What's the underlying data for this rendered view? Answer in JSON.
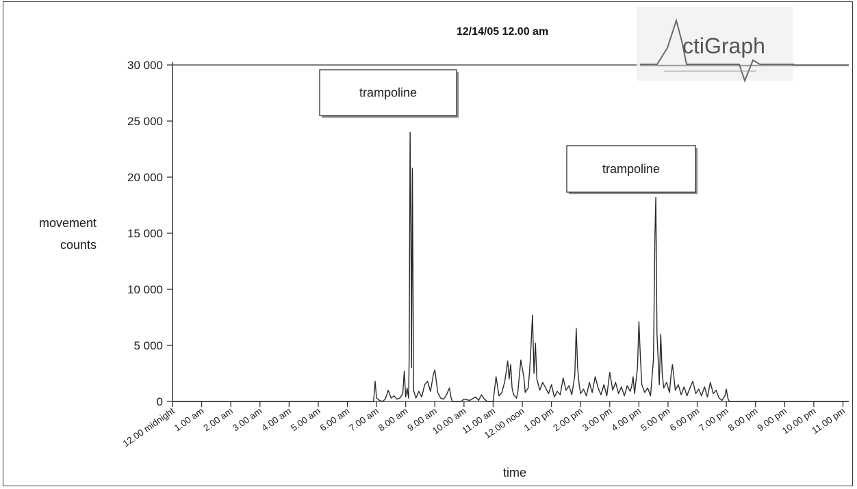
{
  "chart_data": {
    "type": "line",
    "title": "12/14/05 12.00 am",
    "logo_text": "ActiGraph",
    "xlabel": "time",
    "ylabel": [
      "movement",
      "counts"
    ],
    "ylim": [
      0,
      30000
    ],
    "y_ticks": [
      0,
      5000,
      10000,
      15000,
      20000,
      25000,
      30000
    ],
    "y_tick_labels": [
      "0",
      "5 000",
      "10 000",
      "15 000",
      "20 000",
      "25 000",
      "30 000"
    ],
    "x_range_hours": [
      0,
      23.2
    ],
    "x_ticks": [
      0,
      1,
      2,
      3,
      4,
      5,
      6,
      7,
      8,
      9,
      10,
      11,
      12,
      13,
      14,
      15,
      16,
      17,
      18,
      19,
      20,
      21,
      22,
      23
    ],
    "x_tick_labels": [
      "12.00 midnight",
      "1.00 am",
      "2.00 am",
      "3.00 am",
      "4.00 am",
      "5.00 am",
      "6.00 am",
      "7.00 am",
      "8.00 am",
      "9.00 am",
      "10.00 am",
      "11.00 am",
      "12.00 noon",
      "1.00 pm",
      "2.00 pm",
      "3.00 pm",
      "4.00 pm",
      "5.00 pm",
      "6.00 pm",
      "7.00 pm",
      "8.00 pm",
      "9.00 pm",
      "10.00 pm",
      "11.00 pm"
    ],
    "grid": false,
    "legend": "none",
    "annotations": [
      {
        "text": "trampoline",
        "hour": 8.2,
        "value": 24000
      },
      {
        "text": "trampoline",
        "hour": 16.55,
        "value": 18200
      }
    ],
    "series": [
      {
        "color": "#2a2a2a",
        "points": [
          [
            0,
            0
          ],
          [
            6.9,
            0
          ],
          [
            6.95,
            1800
          ],
          [
            7.0,
            300
          ],
          [
            7.1,
            100
          ],
          [
            7.2,
            0
          ],
          [
            7.3,
            200
          ],
          [
            7.4,
            1000
          ],
          [
            7.5,
            300
          ],
          [
            7.6,
            500
          ],
          [
            7.7,
            200
          ],
          [
            7.8,
            300
          ],
          [
            7.9,
            700
          ],
          [
            7.95,
            2700
          ],
          [
            8.0,
            400
          ],
          [
            8.05,
            1200
          ],
          [
            8.1,
            300
          ],
          [
            8.12,
            4000
          ],
          [
            8.15,
            24000
          ],
          [
            8.18,
            15000
          ],
          [
            8.2,
            3000
          ],
          [
            8.23,
            20800
          ],
          [
            8.27,
            1000
          ],
          [
            8.35,
            300
          ],
          [
            8.45,
            900
          ],
          [
            8.55,
            400
          ],
          [
            8.65,
            1500
          ],
          [
            8.75,
            1800
          ],
          [
            8.85,
            900
          ],
          [
            8.95,
            2400
          ],
          [
            9.0,
            2800
          ],
          [
            9.1,
            800
          ],
          [
            9.2,
            300
          ],
          [
            9.3,
            200
          ],
          [
            9.4,
            600
          ],
          [
            9.5,
            1200
          ],
          [
            9.55,
            400
          ],
          [
            9.6,
            0
          ],
          [
            9.9,
            0
          ],
          [
            10.0,
            200
          ],
          [
            10.2,
            100
          ],
          [
            10.4,
            400
          ],
          [
            10.5,
            100
          ],
          [
            10.6,
            600
          ],
          [
            10.7,
            200
          ],
          [
            10.8,
            0
          ],
          [
            11.0,
            0
          ],
          [
            11.1,
            2200
          ],
          [
            11.2,
            500
          ],
          [
            11.3,
            800
          ],
          [
            11.4,
            1800
          ],
          [
            11.5,
            3600
          ],
          [
            11.55,
            2000
          ],
          [
            11.6,
            3300
          ],
          [
            11.65,
            1200
          ],
          [
            11.7,
            600
          ],
          [
            11.8,
            300
          ],
          [
            11.85,
            900
          ],
          [
            11.95,
            3700
          ],
          [
            12.05,
            2200
          ],
          [
            12.1,
            800
          ],
          [
            12.2,
            1200
          ],
          [
            12.25,
            2700
          ],
          [
            12.3,
            5000
          ],
          [
            12.35,
            7700
          ],
          [
            12.4,
            2500
          ],
          [
            12.45,
            5200
          ],
          [
            12.5,
            2000
          ],
          [
            12.6,
            1000
          ],
          [
            12.7,
            1700
          ],
          [
            12.8,
            1200
          ],
          [
            12.9,
            700
          ],
          [
            13.0,
            1500
          ],
          [
            13.1,
            400
          ],
          [
            13.2,
            900
          ],
          [
            13.3,
            600
          ],
          [
            13.4,
            2100
          ],
          [
            13.5,
            1000
          ],
          [
            13.6,
            1400
          ],
          [
            13.7,
            600
          ],
          [
            13.8,
            2300
          ],
          [
            13.85,
            6500
          ],
          [
            13.9,
            3000
          ],
          [
            13.95,
            1500
          ],
          [
            14.0,
            700
          ],
          [
            14.1,
            1100
          ],
          [
            14.2,
            500
          ],
          [
            14.3,
            1700
          ],
          [
            14.4,
            800
          ],
          [
            14.5,
            2200
          ],
          [
            14.6,
            1200
          ],
          [
            14.7,
            600
          ],
          [
            14.8,
            1500
          ],
          [
            14.9,
            500
          ],
          [
            15.0,
            2600
          ],
          [
            15.1,
            1000
          ],
          [
            15.2,
            1700
          ],
          [
            15.3,
            700
          ],
          [
            15.4,
            1300
          ],
          [
            15.5,
            500
          ],
          [
            15.6,
            1400
          ],
          [
            15.7,
            900
          ],
          [
            15.75,
            1300
          ],
          [
            15.8,
            2200
          ],
          [
            15.85,
            700
          ],
          [
            15.95,
            3000
          ],
          [
            16.0,
            7100
          ],
          [
            16.05,
            4000
          ],
          [
            16.1,
            1500
          ],
          [
            16.2,
            800
          ],
          [
            16.3,
            1200
          ],
          [
            16.4,
            500
          ],
          [
            16.5,
            3800
          ],
          [
            16.55,
            14800
          ],
          [
            16.58,
            18200
          ],
          [
            16.62,
            6000
          ],
          [
            16.7,
            1500
          ],
          [
            16.75,
            6000
          ],
          [
            16.8,
            2500
          ],
          [
            16.85,
            1200
          ],
          [
            16.95,
            1700
          ],
          [
            17.05,
            800
          ],
          [
            17.1,
            2300
          ],
          [
            17.15,
            3300
          ],
          [
            17.25,
            1000
          ],
          [
            17.35,
            1500
          ],
          [
            17.45,
            600
          ],
          [
            17.55,
            1300
          ],
          [
            17.65,
            500
          ],
          [
            17.75,
            1200
          ],
          [
            17.85,
            1800
          ],
          [
            17.95,
            700
          ],
          [
            18.05,
            1100
          ],
          [
            18.15,
            500
          ],
          [
            18.25,
            1300
          ],
          [
            18.35,
            400
          ],
          [
            18.45,
            1700
          ],
          [
            18.55,
            700
          ],
          [
            18.65,
            1000
          ],
          [
            18.75,
            300
          ],
          [
            18.85,
            100
          ],
          [
            18.95,
            500
          ],
          [
            19.0,
            1100
          ],
          [
            19.05,
            300
          ],
          [
            19.1,
            0
          ],
          [
            23.2,
            0
          ]
        ]
      }
    ]
  }
}
